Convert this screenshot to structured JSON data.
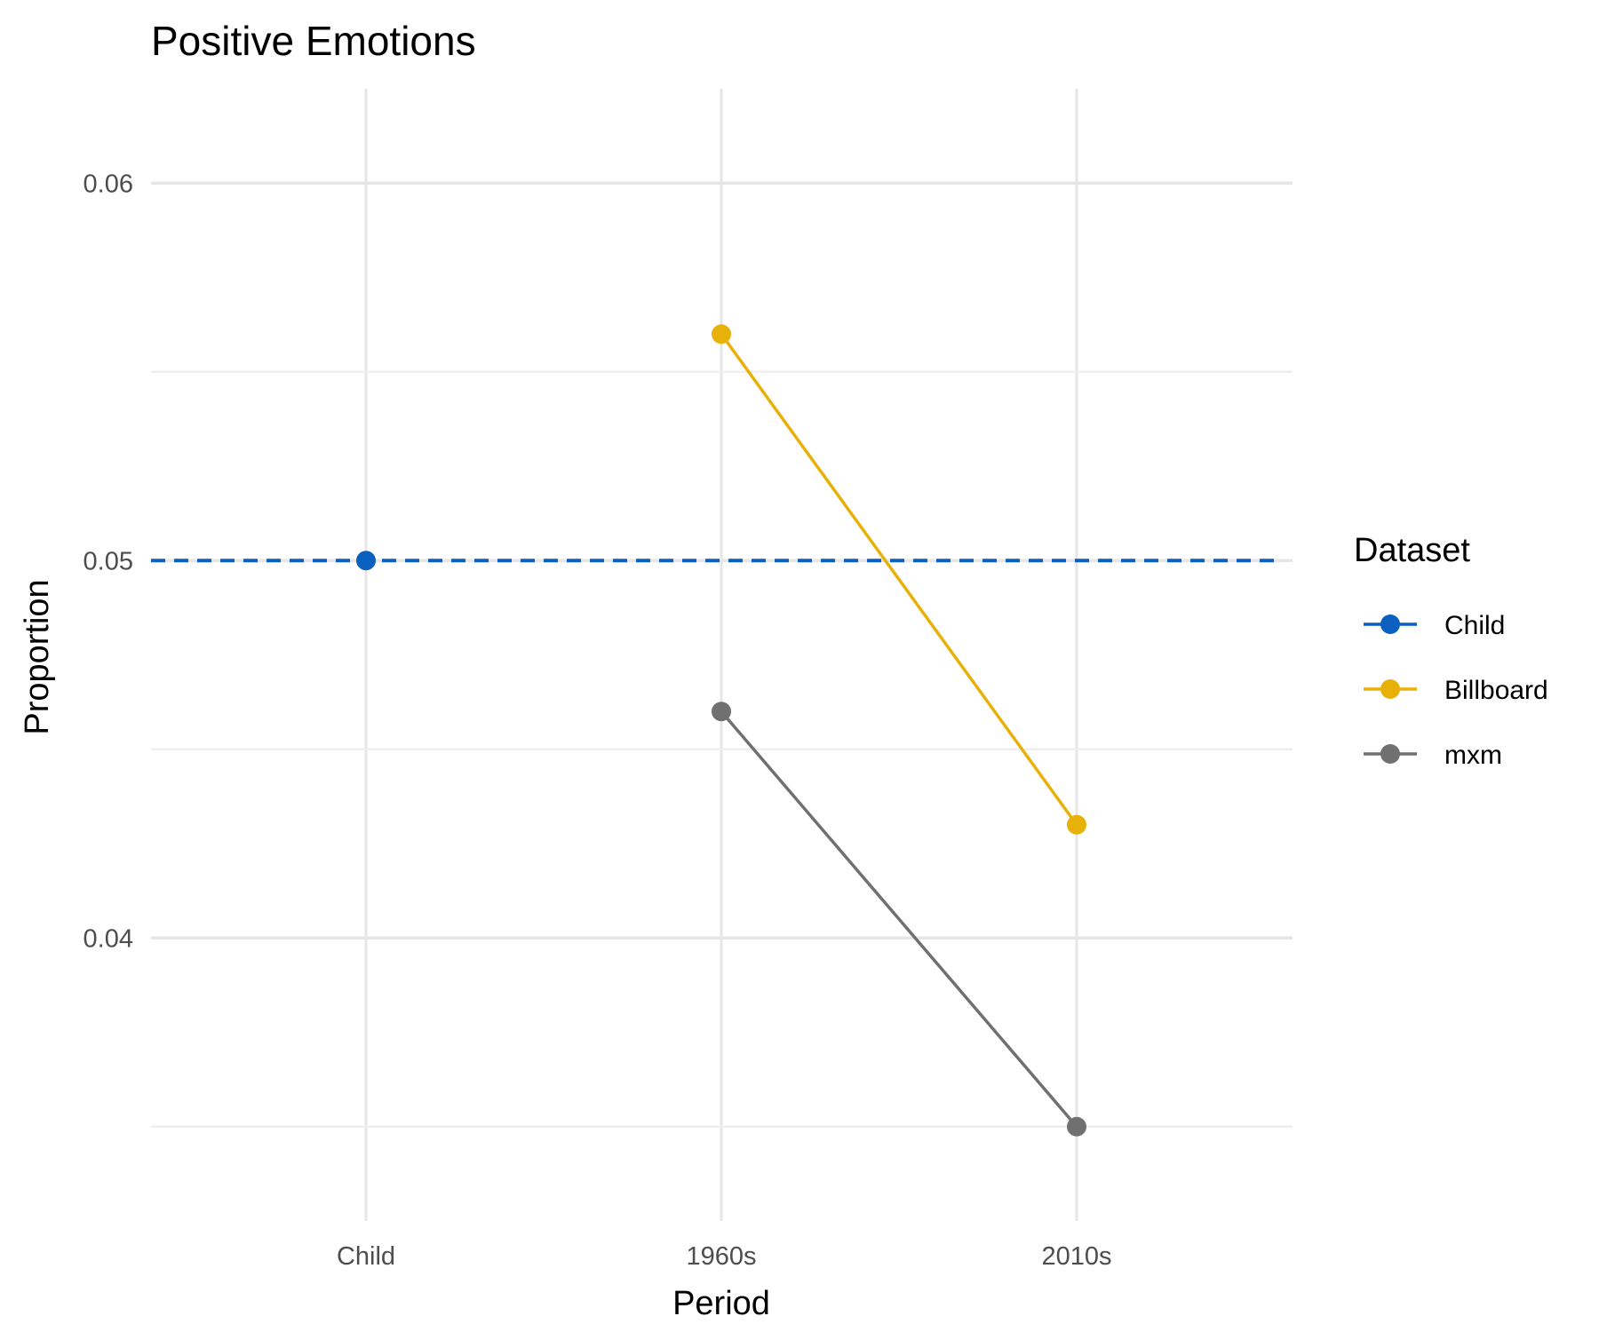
{
  "chart_data": {
    "type": "line",
    "title": "Positive Emotions",
    "xlabel": "Period",
    "ylabel": "Proportion",
    "categories": [
      "Child",
      "1960s",
      "2010s"
    ],
    "y_ticks": [
      "0.04",
      "0.05",
      "0.06"
    ],
    "ylim": [
      0.0325,
      0.0625
    ],
    "grid": true,
    "legend": {
      "title": "Dataset",
      "position": "right"
    },
    "series": [
      {
        "name": "Child",
        "color": "#0a5fbf",
        "line_style": "dashed",
        "points": [
          {
            "x": "Child",
            "y": 0.05
          }
        ],
        "reference_line": 0.05
      },
      {
        "name": "Billboard",
        "color": "#e8b10a",
        "line_style": "solid",
        "points": [
          {
            "x": "1960s",
            "y": 0.056
          },
          {
            "x": "2010s",
            "y": 0.043
          }
        ]
      },
      {
        "name": "mxm",
        "color": "#707070",
        "line_style": "solid",
        "points": [
          {
            "x": "1960s",
            "y": 0.046
          },
          {
            "x": "2010s",
            "y": 0.035
          }
        ]
      }
    ]
  }
}
